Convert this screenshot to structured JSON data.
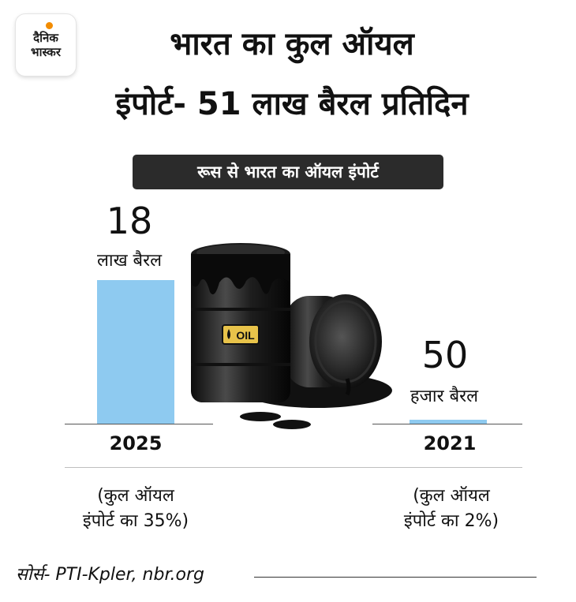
{
  "logo": {
    "line1": "दैनिक",
    "line2": "भास्कर"
  },
  "headline": {
    "line1": "भारत का कुल ऑयल",
    "line2": "इंपोर्ट- 51 लाख बैरल प्रतिदिन"
  },
  "chart_data": {
    "type": "bar",
    "title": "रूस से भारत का ऑयल इंपोर्ट",
    "categories": [
      "2025",
      "2021"
    ],
    "bars": [
      {
        "year": "2025",
        "value_text": "18",
        "unit": "लाख बैरल",
        "value_barrels": 1800000,
        "note_line1": "(कुल ऑयल",
        "note_line2": "इंपोर्ट का 35%)"
      },
      {
        "year": "2021",
        "value_text": "50",
        "unit": "हजार बैरल",
        "value_barrels": 50000,
        "note_line1": "(कुल ऑयल",
        "note_line2": "इंपोर्ट का 2%)"
      }
    ],
    "colors": {
      "bar": "#8ecaf0"
    }
  },
  "illustration": {
    "label": "OIL"
  },
  "source": "सोर्स- PTI-Kpler, nbr.org"
}
